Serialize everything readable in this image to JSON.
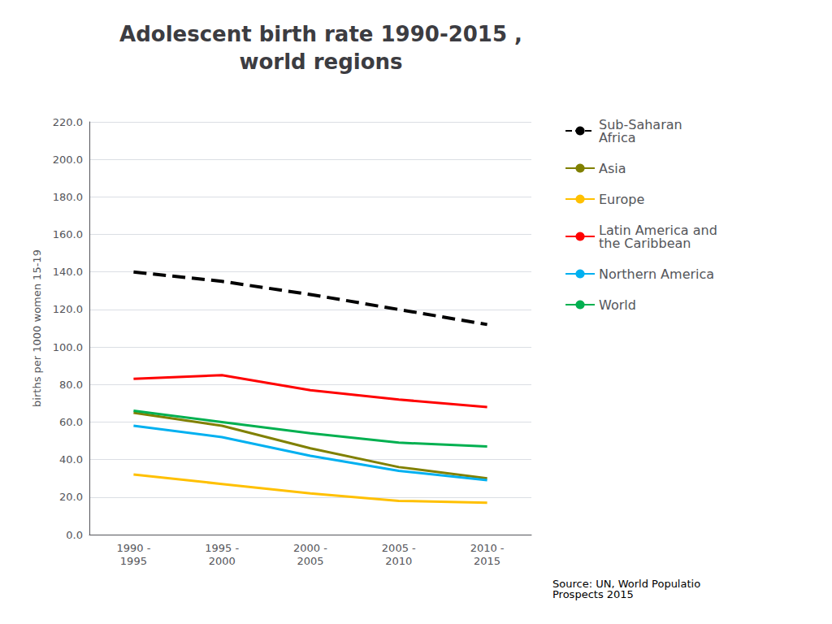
{
  "chart_data": {
    "type": "line",
    "title": "Adolescent birth rate 1990-2015 ,\nworld regions",
    "y_label": "births per 1000 women 15-19",
    "categories": [
      "1990 -\n1995",
      "1995 -\n2000",
      "2000 -\n2005",
      "2005 -\n2010",
      "2010 -\n2015"
    ],
    "series": [
      {
        "name": "Sub-Saharan\nAfrica",
        "color": "#000000",
        "line_style": "dashed",
        "values": [
          140,
          135,
          128,
          120,
          112
        ]
      },
      {
        "name": "Asia",
        "color": "#808000",
        "line_style": "solid",
        "values": [
          65,
          58,
          46,
          36,
          30
        ]
      },
      {
        "name": "Europe",
        "color": "#FFC000",
        "line_style": "solid",
        "values": [
          32,
          27,
          22,
          18,
          17
        ]
      },
      {
        "name": "Latin America and\nthe Caribbean",
        "color": "#FF0000",
        "line_style": "solid",
        "values": [
          83,
          85,
          77,
          72,
          68
        ]
      },
      {
        "name": "Northern America",
        "color": "#00B0F0",
        "line_style": "solid",
        "values": [
          58,
          52,
          42,
          34,
          29
        ]
      },
      {
        "name": "World",
        "color": "#00B050",
        "line_style": "solid",
        "values": [
          66,
          60,
          54,
          49,
          47
        ]
      }
    ],
    "ylim": [
      0,
      220
    ],
    "yticks": [
      {
        "value": 0,
        "label": "0.0"
      },
      {
        "value": 20,
        "label": "20.0"
      },
      {
        "value": 40,
        "label": "40.0"
      },
      {
        "value": 60,
        "label": "60.0"
      },
      {
        "value": 80,
        "label": "80.0"
      },
      {
        "value": 100,
        "label": "100.0"
      },
      {
        "value": 120,
        "label": "120.0"
      },
      {
        "value": 140,
        "label": "140.0"
      },
      {
        "value": 160,
        "label": "160.0"
      },
      {
        "value": 180,
        "label": "180.0"
      },
      {
        "value": 200,
        "label": "200.0"
      },
      {
        "value": 220,
        "label": "220.0"
      }
    ],
    "grid": true,
    "legend": "right",
    "annotations": [
      "Source: UN, World Populatio\nProspects 2015"
    ]
  }
}
